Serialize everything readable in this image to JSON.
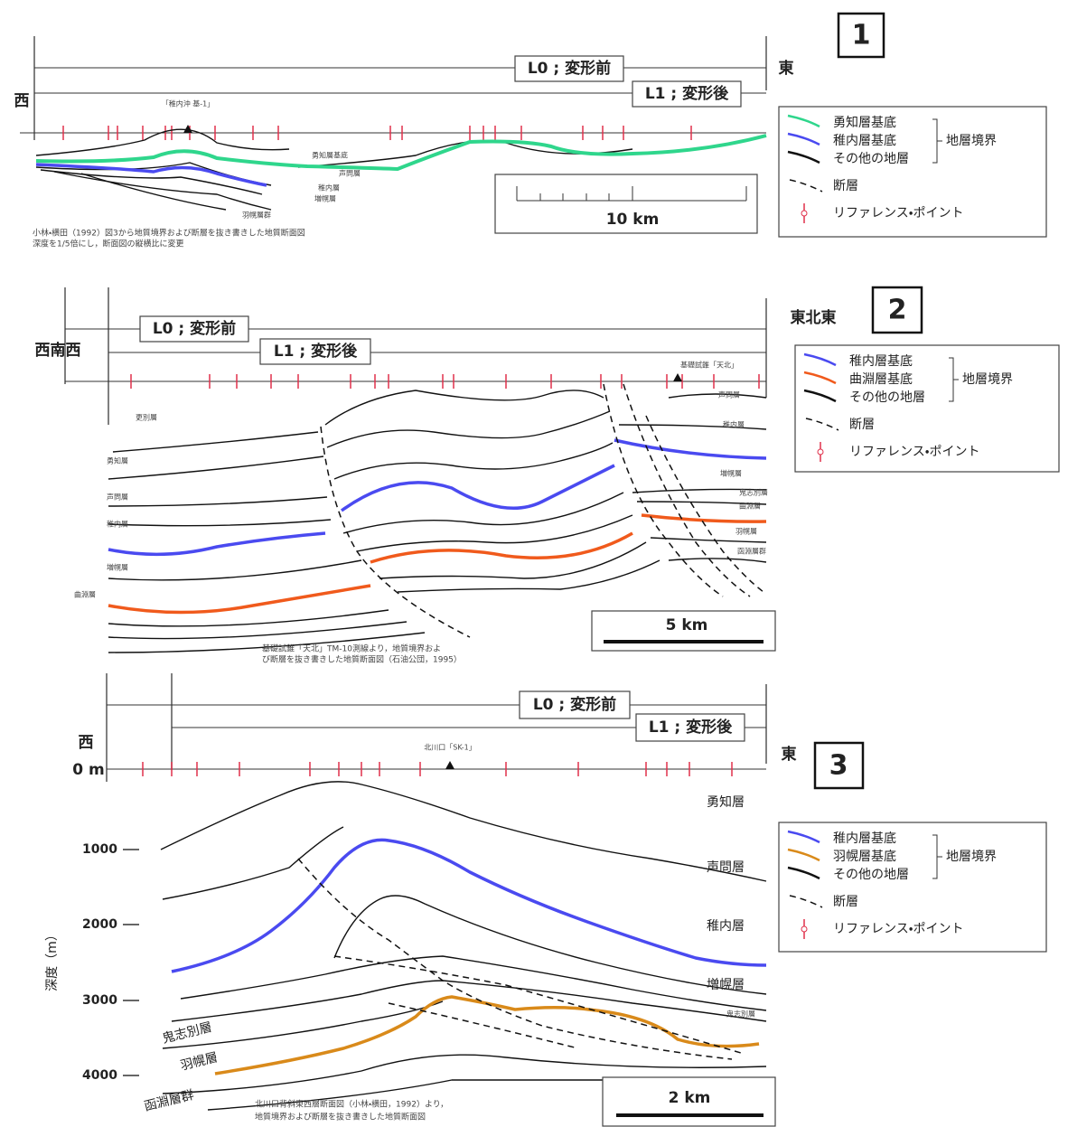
{
  "panel1": {
    "number": "1",
    "west": "西",
    "east": "東",
    "l0": "L0 ; 変形前",
    "l1": "L1 ; 変形後",
    "well": "「稚内沖 基-1」",
    "layer_labels": [
      "勇知層基底",
      "声問層",
      "稚内層",
      "増幌層",
      "羽幌層群"
    ],
    "scale": "10 km",
    "legend": {
      "items": [
        "勇知層基底",
        "稚内層基底",
        "その他の地層",
        "断層",
        "リファレンス・ポイント"
      ],
      "group": "地層境界"
    },
    "caption": [
      "小林・横田（1992）図3から地質境界および断層を抜き書きした地質断面図",
      "深度を1/5倍にし，断面図の縦横比に変更"
    ]
  },
  "panel2": {
    "number": "2",
    "west": "西南西",
    "east": "東北東",
    "l0": "L0 ; 変形前",
    "l1": "L1 ; 変形後",
    "well": "基礎試錐「天北」",
    "layer_labels": [
      "更別層",
      "勇知層",
      "声問層",
      "稚内層",
      "増幌層",
      "曲淵層",
      "声問層",
      "稚内層",
      "増幌層",
      "鬼志別層",
      "曲淵層",
      "羽幌層",
      "函淵層群"
    ],
    "scale": "5 km",
    "legend": {
      "items": [
        "稚内層基底",
        "曲淵層基底",
        "その他の地層",
        "断層",
        "リファレンス・ポイント"
      ],
      "group": "地層境界"
    },
    "caption": [
      "基礎試錐「天北」TM-10測線より，地質境界およ",
      "び断層を抜き書きした地質断面図（石油公団，1995）"
    ]
  },
  "panel3": {
    "number": "3",
    "west": "西",
    "east": "東",
    "zero": "0 m",
    "l0": "L0 ; 変形前",
    "l1": "L1 ; 変形後",
    "well": "北川口「SK-1」",
    "depth_ticks": [
      "1000",
      "2000",
      "3000",
      "4000"
    ],
    "depth_label": "深度（m）",
    "layer_labels": [
      "勇知層",
      "声問層",
      "稚内層",
      "増幌層",
      "鬼志別層",
      "鬼志別層",
      "羽幌層",
      "函淵層群"
    ],
    "scale": "2 km",
    "legend": {
      "items": [
        "稚内層基底",
        "羽幌層基底",
        "その他の地層",
        "断層",
        "リファレンス・ポイント"
      ],
      "group": "地層境界"
    },
    "caption": [
      "北川口背斜東西層断面図（小林・横田，1992）より，",
      "地質境界および断層を抜き書きした地質断面図"
    ]
  }
}
